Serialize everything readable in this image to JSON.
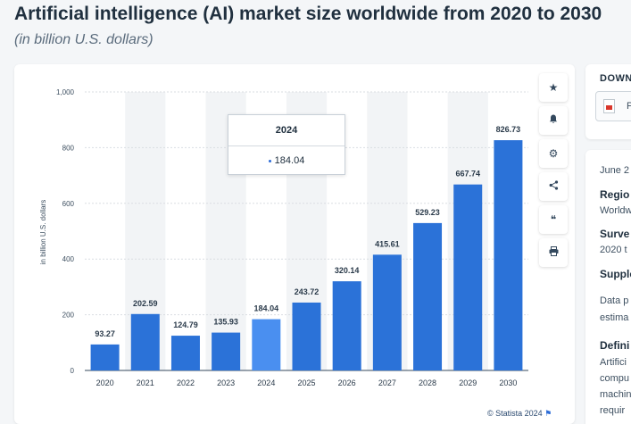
{
  "header": {
    "title": "Artificial intelligence (AI) market size worldwide from 2020 to 2030",
    "subtitle": "(in billion U.S. dollars)"
  },
  "chart_data": {
    "type": "bar",
    "categories": [
      "2020",
      "2021",
      "2022",
      "2023",
      "2024",
      "2025",
      "2026",
      "2027",
      "2028",
      "2029",
      "2030"
    ],
    "values": [
      93.27,
      202.59,
      124.79,
      135.93,
      184.04,
      243.72,
      320.14,
      415.61,
      529.23,
      667.74,
      826.73
    ],
    "value_labels": [
      "93.27",
      "202.59",
      "124.79",
      "135.93",
      "184.04",
      "243.72",
      "320.14",
      "415.61",
      "529.23",
      "667.74",
      "826.73"
    ],
    "ylabel": "in billion U.S. dollars",
    "ylim": [
      0,
      1000
    ],
    "yticks": [
      0,
      200,
      400,
      600,
      800,
      1000
    ],
    "ytick_labels": [
      "0",
      "200",
      "400",
      "600",
      "800",
      "1,000"
    ],
    "grid": true,
    "highlighted_index": 4,
    "colors": {
      "bar": "#2b72d8",
      "bar_highlight": "#4a8ff0",
      "band": "#f2f4f6",
      "grid": "#d9dde2"
    }
  },
  "tooltip": {
    "category": "2024",
    "value": "184.04"
  },
  "toolbar": {
    "icons": [
      "star-icon",
      "bell-icon",
      "gear-icon",
      "share-icon",
      "quote-icon",
      "print-icon"
    ],
    "glyphs": [
      "★",
      "🔔",
      "⚙",
      "<",
      "❝",
      "⎙"
    ]
  },
  "source": "© Statista 2024",
  "side_panel": {
    "download_heading": "DOWN",
    "pdf_label": "P",
    "release_date": "June 2",
    "region_label": "Regio",
    "region_value": "Worldw",
    "survey_label": "Surve",
    "survey_value": "2020 t",
    "supplementary_label": "Supple",
    "data_note_1": "Data p",
    "data_note_2": "estima",
    "definition_label": "Defini",
    "definition_1": "Artifici",
    "definition_2": "compu",
    "definition_3": "machin",
    "definition_4": "requir"
  }
}
